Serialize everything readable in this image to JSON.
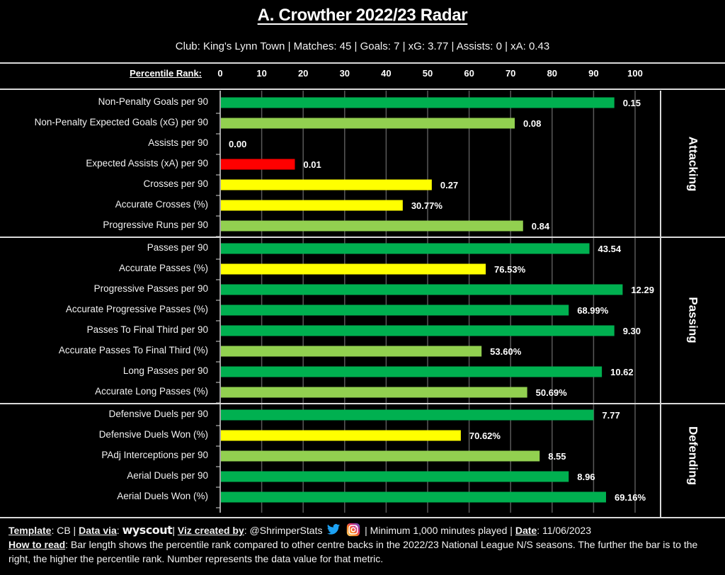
{
  "header": {
    "title": "A. Crowther 2022/23 Radar",
    "subtitle": "Club: King's Lynn Town | Matches: 45 | Goals: 7 | xG: 3.77 | Assists: 0 | xA: 0.43"
  },
  "colors": {
    "elite": "#00B050",
    "good": "#92D050",
    "average": "#FFFF00",
    "poor": "#FF0000",
    "background": "#000000",
    "gridline": "#595959"
  },
  "chart_data": {
    "type": "bar",
    "orientation": "horizontal",
    "title": "A. Crowther 2022/23 Radar",
    "xlabel": "Percentile Rank:",
    "xlim": [
      0,
      100
    ],
    "xticks": [
      "0",
      "10",
      "20",
      "30",
      "40",
      "50",
      "60",
      "70",
      "80",
      "90",
      "100"
    ],
    "grid": true,
    "sections": [
      {
        "name": "Attacking",
        "metrics": [
          {
            "label": "Non-Penalty Goals per 90",
            "percentile": 95,
            "value": "0.15",
            "color": "#00B050"
          },
          {
            "label": "Non-Penalty Expected Goals (xG) per 90",
            "percentile": 71,
            "value": "0.08",
            "color": "#92D050"
          },
          {
            "label": "Assists per 90",
            "percentile": 0,
            "value": "0.00",
            "color": "#FF0000"
          },
          {
            "label": "Expected Assists (xA) per 90",
            "percentile": 18,
            "value": "0.01",
            "color": "#FF0000"
          },
          {
            "label": "Crosses per 90",
            "percentile": 51,
            "value": "0.27",
            "color": "#FFFF00"
          },
          {
            "label": "Accurate Crosses (%)",
            "percentile": 44,
            "value": "30.77%",
            "color": "#FFFF00"
          },
          {
            "label": "Progressive Runs per 90",
            "percentile": 73,
            "value": "0.84",
            "color": "#92D050"
          }
        ]
      },
      {
        "name": "Passing",
        "metrics": [
          {
            "label": "Passes per 90",
            "percentile": 89,
            "value": "43.54",
            "color": "#00B050"
          },
          {
            "label": "Accurate Passes (%)",
            "percentile": 64,
            "value": "76.53%",
            "color": "#FFFF00"
          },
          {
            "label": "Progressive Passes per 90",
            "percentile": 97,
            "value": "12.29",
            "color": "#00B050"
          },
          {
            "label": "Accurate Progressive Passes (%)",
            "percentile": 84,
            "value": "68.99%",
            "color": "#00B050"
          },
          {
            "label": "Passes To Final Third per 90",
            "percentile": 95,
            "value": "9.30",
            "color": "#00B050"
          },
          {
            "label": "Accurate Passes To Final Third (%)",
            "percentile": 63,
            "value": "53.60%",
            "color": "#92D050"
          },
          {
            "label": "Long Passes per 90",
            "percentile": 92,
            "value": "10.62",
            "color": "#00B050"
          },
          {
            "label": "Accurate Long Passes (%)",
            "percentile": 74,
            "value": "50.69%",
            "color": "#92D050"
          }
        ]
      },
      {
        "name": "Defending",
        "metrics": [
          {
            "label": "Defensive Duels per 90",
            "percentile": 90,
            "value": "7.77",
            "color": "#00B050"
          },
          {
            "label": "Defensive Duels Won (%)",
            "percentile": 58,
            "value": "70.62%",
            "color": "#FFFF00"
          },
          {
            "label": "PAdj Interceptions per 90",
            "percentile": 77,
            "value": "8.55",
            "color": "#92D050"
          },
          {
            "label": "Aerial Duels per 90",
            "percentile": 84,
            "value": "8.96",
            "color": "#00B050"
          },
          {
            "label": "Aerial Duels Won (%)",
            "percentile": 93,
            "value": "69.16%",
            "color": "#00B050"
          }
        ]
      }
    ]
  },
  "footer": {
    "template_label": "Template",
    "template_value": ": CB | ",
    "data_via_label": "Data via",
    "data_via_sep": ": ",
    "data_source": "wyscout",
    "viz_sep": "| ",
    "viz_label": "Viz created by",
    "viz_value": ": @ShrimperStats",
    "twitter_icon": "twitter-bird-icon",
    "instagram_icon": "instagram-icon",
    "min_minutes": " | Minimum 1,000 minutes played | ",
    "date_label": "Date",
    "date_value": ": 11/06/2023",
    "how_label": "How to read",
    "how_text": ": Bar length shows the percentile rank compared to other centre backs in the 2022/23 National League N/S seasons. The further the bar is to the right, the higher the percentile rank. Number represents the data value for that metric."
  }
}
